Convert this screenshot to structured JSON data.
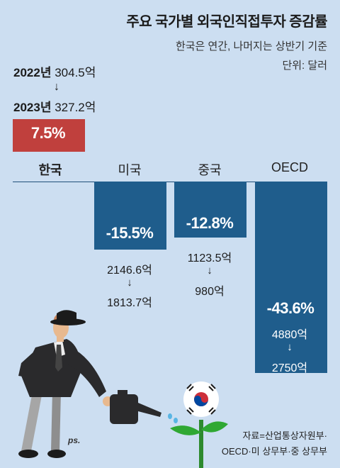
{
  "title": "주요 국가별 외국인직접투자 증감률",
  "subtitle": "한국은 연간, 나머지는 상반기 기준",
  "unit": "단위: 달러",
  "korea_detail": {
    "year1": "2022년",
    "value1": "304.5억",
    "arrow": "↓",
    "year2": "2023년",
    "value2": "327.2억"
  },
  "source": {
    "line1": "자료=산업통상자원부·",
    "line2": "OECD·미 상무부·중 상무부"
  },
  "signature": "ps.",
  "chart_data": {
    "type": "bar",
    "categories": [
      "한국",
      "미국",
      "중국",
      "OECD"
    ],
    "values": [
      7.5,
      -15.5,
      -12.8,
      -43.6
    ],
    "value_labels": [
      "7.5%",
      "-15.5%",
      "-12.8%",
      "-43.6%"
    ],
    "from_values": [
      "304.5억",
      "2146.6억",
      "1123.5억",
      "4880억"
    ],
    "to_values": [
      "327.2억",
      "1813.7억",
      "980억",
      "2750억"
    ],
    "arrow": "↓",
    "colors": {
      "positive": "#c0403d",
      "negative": "#1f5d8c",
      "background": "#ccdef1"
    }
  }
}
